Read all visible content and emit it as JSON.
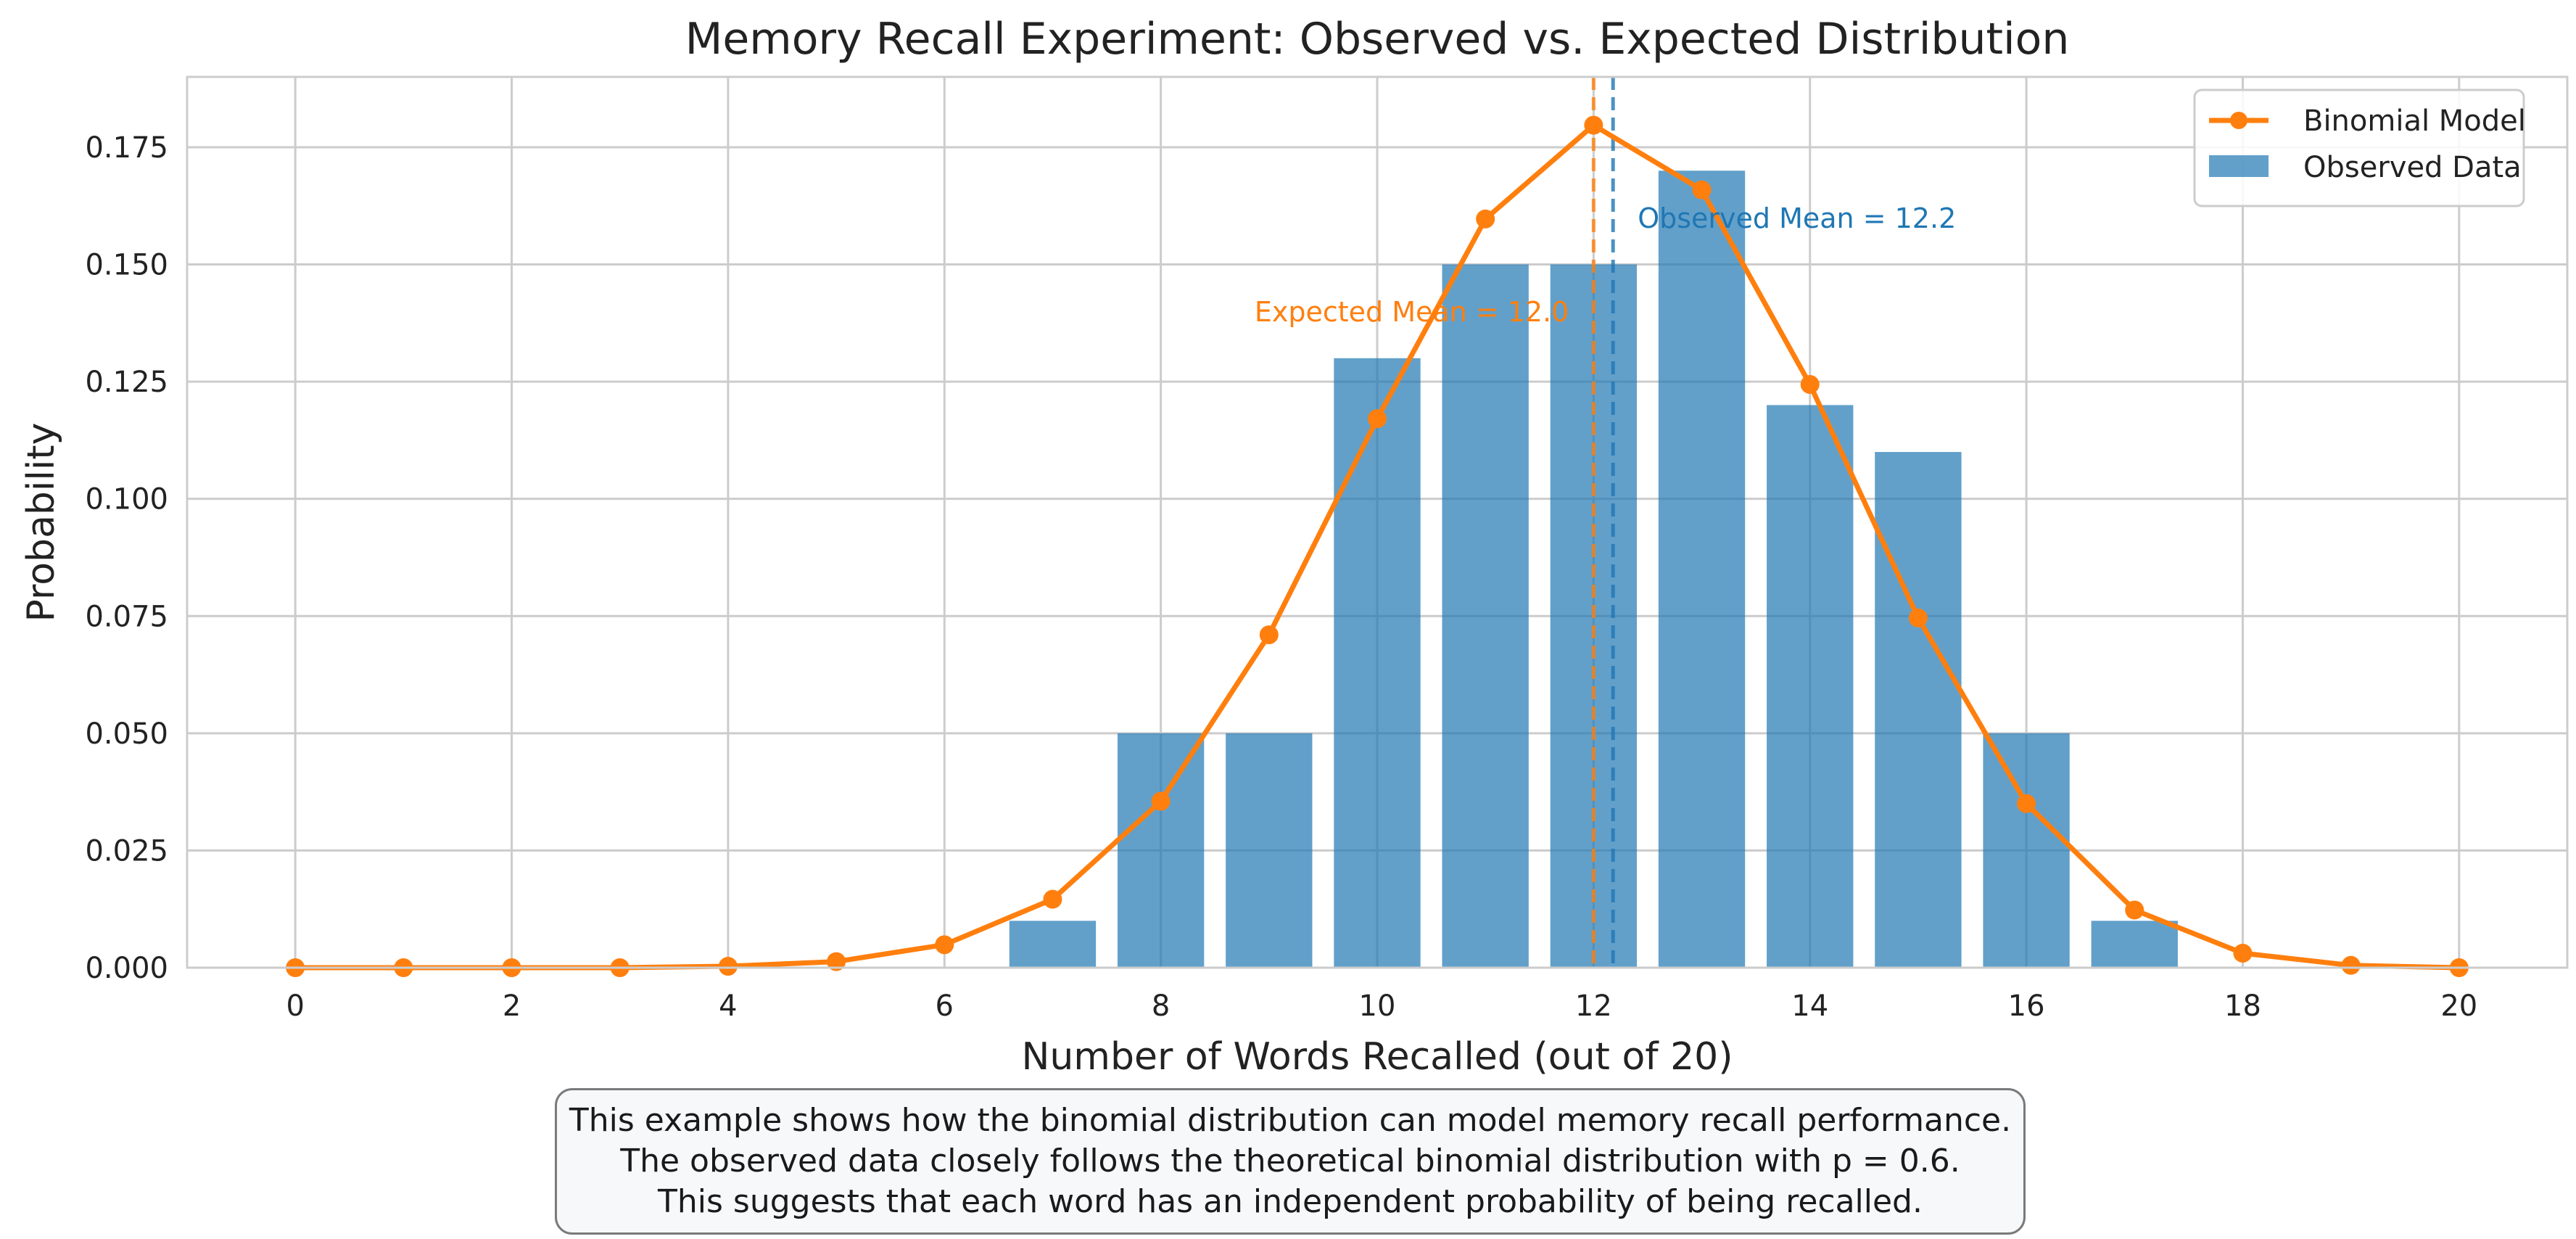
{
  "chart_data": {
    "type": "bar+line",
    "title": "Memory Recall Experiment: Observed vs. Expected Distribution",
    "xlabel": "Number of Words Recalled (out of 20)",
    "ylabel": "Probability",
    "xlim": [
      -1,
      21
    ],
    "ylim": [
      0,
      0.19
    ],
    "xticks": [
      0,
      2,
      4,
      6,
      8,
      10,
      12,
      14,
      16,
      18,
      20
    ],
    "yticks": [
      0.0,
      0.025,
      0.05,
      0.075,
      0.1,
      0.125,
      0.15,
      0.175
    ],
    "ytick_labels": [
      "0.000",
      "0.025",
      "0.050",
      "0.075",
      "0.100",
      "0.125",
      "0.150",
      "0.175"
    ],
    "grid": true,
    "legend_position": "top-right",
    "series": [
      {
        "name": "Binomial Model",
        "kind": "line",
        "color": "#ff7f0e",
        "x": [
          0,
          1,
          2,
          3,
          4,
          5,
          6,
          7,
          8,
          9,
          10,
          11,
          12,
          13,
          14,
          15,
          16,
          17,
          18,
          19,
          20
        ],
        "values": [
          0.0,
          0.0,
          0.0,
          0.0,
          0.0003,
          0.0013,
          0.0049,
          0.0146,
          0.0355,
          0.071,
          0.1171,
          0.1597,
          0.1797,
          0.1659,
          0.1244,
          0.0746,
          0.035,
          0.0123,
          0.0031,
          0.0005,
          0.0
        ]
      },
      {
        "name": "Observed Data",
        "kind": "bar",
        "color": "#1f77b4",
        "x": [
          7,
          8,
          9,
          10,
          11,
          12,
          13,
          14,
          15,
          16,
          17
        ],
        "values": [
          0.01,
          0.05,
          0.05,
          0.13,
          0.15,
          0.15,
          0.17,
          0.12,
          0.11,
          0.05,
          0.01
        ]
      }
    ],
    "annotations": [
      {
        "text": "Expected Mean = 12.0",
        "x": 12.0,
        "color": "#ff7f0e"
      },
      {
        "text": "Observed Mean = 12.2",
        "x": 12.18,
        "color": "#1f77b4"
      }
    ]
  },
  "caption": {
    "line1": "This example shows how the binomial distribution can model memory recall performance.",
    "line2": "The observed data closely follows the theoretical binomial distribution with p = 0.6.",
    "line3": "This suggests that each word has an independent probability of being recalled."
  }
}
